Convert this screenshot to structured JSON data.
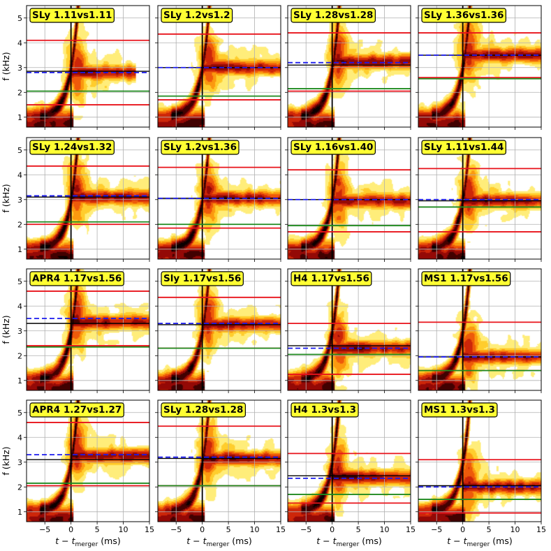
{
  "chart_data": {
    "type": "heatmap",
    "layout": {
      "rows": 4,
      "cols": 4,
      "sharex": true,
      "sharey": true
    },
    "xlabel": "t − t",
    "xlabel_sub": "merger",
    "xlabel_unit": "(ms)",
    "ylabel": "f (kHz)",
    "xlim": [
      -8.5,
      15
    ],
    "ylim": [
      0.6,
      5.5
    ],
    "xticks": [
      -5,
      0,
      5,
      10,
      15
    ],
    "yticks": [
      1,
      2,
      3,
      4,
      5
    ],
    "xtick_labels": [
      "−5",
      "0",
      "5",
      "10",
      "15"
    ],
    "ytick_labels": [
      "1",
      "2",
      "3",
      "4",
      "5"
    ],
    "grid": true,
    "colors": {
      "red_line": "#e8121a",
      "green_line": "#1f8a1f",
      "blue_line": "#1a1aee",
      "black_line": "#000000",
      "label_bg": "#ffff33"
    },
    "panels": [
      {
        "label": "SLy 1.11vs1.11",
        "red": [
          4.1,
          1.5
        ],
        "green": 2.05,
        "blue": 2.8,
        "black": 2.85,
        "peak_f": 2.8,
        "end_t": 12.5
      },
      {
        "label": "SLy 1.2vs1.2",
        "red": [
          4.35,
          1.7
        ],
        "green": 1.85,
        "blue": 3.0,
        "black": 3.0,
        "peak_f": 3.0,
        "end_t": 15
      },
      {
        "label": "SLy 1.28vs1.28",
        "red": [
          4.4,
          2.05
        ],
        "green": 2.15,
        "blue": 3.2,
        "black": 3.1,
        "peak_f": 3.25,
        "end_t": 15
      },
      {
        "label": "SLy 1.36vs1.36",
        "red": [
          4.4,
          2.6
        ],
        "green": 2.55,
        "blue": 3.5,
        "black": 3.5,
        "peak_f": 3.5,
        "end_t": 15
      },
      {
        "label": "SLy 1.24vs1.32",
        "red": [
          4.35,
          2.0
        ],
        "green": 2.1,
        "blue": 3.15,
        "black": 3.1,
        "peak_f": 3.1,
        "end_t": 15
      },
      {
        "label": "SLy 1.2vs1.36",
        "red": [
          4.3,
          1.85
        ],
        "green": 2.0,
        "blue": 3.05,
        "black": 3.05,
        "peak_f": 3.05,
        "end_t": 15
      },
      {
        "label": "SLy 1.16vs1.40",
        "red": [
          4.2,
          1.7
        ],
        "green": 1.95,
        "blue": 3.0,
        "black": 3.0,
        "peak_f": 2.95,
        "end_t": 15
      },
      {
        "label": "SLy 1.11vs1.44",
        "red": [
          4.25,
          1.7
        ],
        "green": 2.7,
        "blue": 3.0,
        "black": 2.95,
        "peak_f": 2.95,
        "end_t": 15
      },
      {
        "label": "APR4 1.17vs1.56",
        "red": [
          4.6,
          2.4
        ],
        "green": 2.35,
        "blue": 3.5,
        "black": 3.3,
        "peak_f": 3.35,
        "end_t": 15
      },
      {
        "label": "Sly 1.17vs1.56",
        "red": [
          4.35,
          2.3
        ],
        "green": 2.3,
        "blue": 3.3,
        "black": 3.25,
        "peak_f": 3.25,
        "end_t": 15
      },
      {
        "label": "H4 1.17vs1.56",
        "red": [
          3.3,
          1.25
        ],
        "green": 2.05,
        "blue": 2.3,
        "black": 2.4,
        "peak_f": 2.3,
        "end_t": 15
      },
      {
        "label": "MS1 1.17vs1.56",
        "red": [
          3.35,
          1.4
        ],
        "green": 1.4,
        "blue": 1.95,
        "black": 1.95,
        "peak_f": 1.95,
        "end_t": 15
      },
      {
        "label": "APR4 1.27vs1.27",
        "red": [
          4.6,
          2.05
        ],
        "green": 2.15,
        "blue": 3.3,
        "black": 3.1,
        "peak_f": 3.25,
        "end_t": 15
      },
      {
        "label": "SLy 1.28vs1.28",
        "red": [
          4.45,
          2.05
        ],
        "green": 2.05,
        "blue": 3.2,
        "black": 3.15,
        "peak_f": 3.15,
        "end_t": 15
      },
      {
        "label": "H4 1.3vs1.3",
        "red": [
          3.35,
          1.35
        ],
        "green": 1.7,
        "blue": 2.35,
        "black": 2.45,
        "peak_f": 2.4,
        "end_t": 15
      },
      {
        "label": "MS1 1.3vs1.3",
        "red": [
          3.1,
          0.95
        ],
        "green": 1.5,
        "blue": 2.0,
        "black": 2.05,
        "peak_f": 2.0,
        "end_t": 15
      }
    ]
  }
}
